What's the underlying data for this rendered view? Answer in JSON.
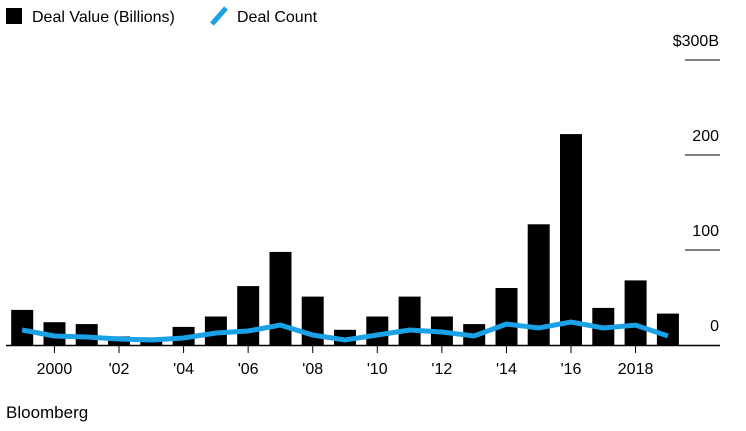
{
  "chart_data": {
    "type": "bar",
    "title": "",
    "xlabel": "",
    "ylabel": "",
    "legend_placement": "top-left",
    "grid": false,
    "series": [
      {
        "name": "Deal Value (Billions)",
        "type": "bar",
        "color": "#000000",
        "x": [
          1999,
          2000,
          2001,
          2002,
          2003,
          2004,
          2005,
          2006,
          2007,
          2008,
          2009,
          2010,
          2011,
          2012,
          2013,
          2014,
          2015,
          2016,
          2017,
          2018,
          2019
        ],
        "values": [
          37,
          24,
          22,
          9,
          8,
          19,
          30,
          62,
          98,
          51,
          16,
          30,
          51,
          30,
          22,
          60,
          127,
          222,
          39,
          68,
          33
        ]
      },
      {
        "name": "Deal Count",
        "type": "line",
        "color": "#1aa1e6",
        "x": [
          1999,
          2000,
          2001,
          2002,
          2003,
          2004,
          2005,
          2006,
          2007,
          2008,
          2009,
          2010,
          2011,
          2012,
          2013,
          2014,
          2015,
          2016,
          2017,
          2018,
          2019
        ],
        "values": [
          15,
          9,
          8,
          6,
          5,
          7,
          12,
          14,
          20,
          10,
          5,
          10,
          15,
          13,
          9,
          21,
          17,
          23,
          17,
          20,
          9
        ]
      }
    ],
    "y_axis": {
      "range": [
        0,
        300
      ],
      "ticks": [
        {
          "value": 300,
          "label": "$300B"
        },
        {
          "value": 200,
          "label": "200"
        },
        {
          "value": 100,
          "label": "100"
        },
        {
          "value": 0,
          "label": "0"
        }
      ]
    },
    "x_axis": {
      "range": [
        1999,
        2019
      ],
      "ticks": [
        {
          "value": 2000,
          "label": "2000"
        },
        {
          "value": 2002,
          "label": "'02"
        },
        {
          "value": 2004,
          "label": "'04"
        },
        {
          "value": 2006,
          "label": "'06"
        },
        {
          "value": 2008,
          "label": "'08"
        },
        {
          "value": 2010,
          "label": "'10"
        },
        {
          "value": 2012,
          "label": "'12"
        },
        {
          "value": 2014,
          "label": "'14"
        },
        {
          "value": 2016,
          "label": "'16"
        },
        {
          "value": 2018,
          "label": "2018"
        }
      ]
    }
  },
  "source": "Bloomberg"
}
